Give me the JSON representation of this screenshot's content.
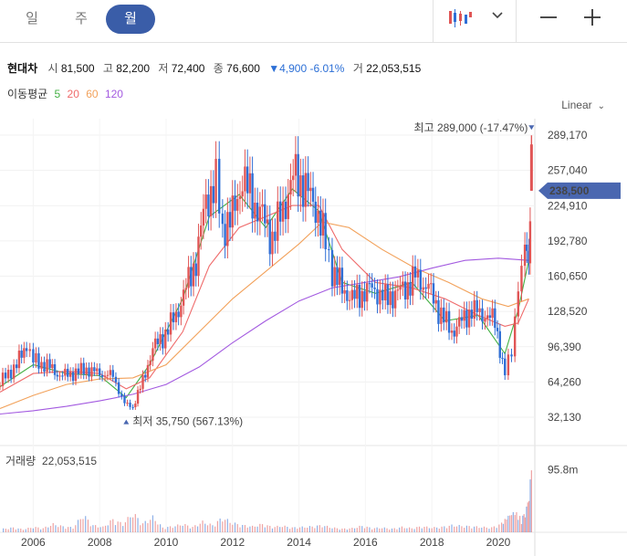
{
  "tabs": [
    {
      "label": "일",
      "active": false
    },
    {
      "label": "주",
      "active": false
    },
    {
      "label": "월",
      "active": true
    }
  ],
  "toolbar": {
    "chart_type_icon": "candlestick-icon",
    "dropdown_icon": "chevron-down-icon",
    "minimize_icon": "minus-icon",
    "add_icon": "plus-icon"
  },
  "quote": {
    "name": "현대차",
    "open_label": "시",
    "open": "81,500",
    "high_label": "고",
    "high": "82,200",
    "low_label": "저",
    "low": "72,400",
    "close_label": "종",
    "close": "76,600",
    "change": "▼4,900 -6.01%",
    "volume_label": "거",
    "volume": "22,053,515"
  },
  "moving_average": {
    "label": "이동평균",
    "periods": [
      "5",
      "20",
      "60",
      "120"
    ]
  },
  "scale_mode": "Linear",
  "colors": {
    "up": "#e05555",
    "down": "#2f6fd6",
    "ma5": "#44b044",
    "ma20": "#ef6a6a",
    "ma60": "#f2a15a",
    "ma120": "#a35ae0",
    "accent": "#4a67b0"
  },
  "chart_data": [
    {
      "type": "candlestick",
      "title": "현대차",
      "period": "monthly",
      "price_ticks": [
        289170,
        257040,
        224910,
        192780,
        160650,
        128520,
        96390,
        64260,
        32130
      ],
      "last_price_label": "238,500",
      "last_price": 238500,
      "high_annotation": "최고 289,000 (-17.47%)",
      "high_value": 289000,
      "high_date": 2021.0,
      "low_annotation": "최저 35,750 (567.13%)",
      "low_value": 35750,
      "low_date": 2008.8,
      "x_ticks": [
        "2006",
        "2008",
        "2010",
        "2012",
        "2014",
        "2016",
        "2018",
        "2020"
      ],
      "close_path": [
        [
          2005.0,
          64000
        ],
        [
          2005.5,
          80000
        ],
        [
          2005.8,
          98000
        ],
        [
          2006.0,
          84000
        ],
        [
          2006.5,
          78000
        ],
        [
          2006.8,
          70000
        ],
        [
          2007.2,
          72000
        ],
        [
          2007.6,
          76000
        ],
        [
          2008.0,
          72000
        ],
        [
          2008.4,
          70000
        ],
        [
          2008.75,
          44000
        ],
        [
          2009.0,
          42000
        ],
        [
          2009.3,
          65000
        ],
        [
          2009.6,
          95000
        ],
        [
          2009.9,
          105000
        ],
        [
          2010.3,
          125000
        ],
        [
          2010.6,
          150000
        ],
        [
          2010.9,
          175000
        ],
        [
          2011.2,
          230000
        ],
        [
          2011.5,
          245000
        ],
        [
          2011.7,
          205000
        ],
        [
          2012.0,
          215000
        ],
        [
          2012.3,
          250000
        ],
        [
          2012.6,
          230000
        ],
        [
          2012.9,
          215000
        ],
        [
          2013.2,
          195000
        ],
        [
          2013.6,
          230000
        ],
        [
          2013.9,
          255000
        ],
        [
          2014.2,
          240000
        ],
        [
          2014.5,
          225000
        ],
        [
          2014.8,
          190000
        ],
        [
          2015.0,
          165000
        ],
        [
          2015.3,
          150000
        ],
        [
          2015.6,
          140000
        ],
        [
          2015.9,
          145000
        ],
        [
          2016.2,
          150000
        ],
        [
          2016.6,
          140000
        ],
        [
          2016.9,
          145000
        ],
        [
          2017.2,
          150000
        ],
        [
          2017.5,
          160000
        ],
        [
          2017.9,
          150000
        ],
        [
          2018.2,
          130000
        ],
        [
          2018.6,
          110000
        ],
        [
          2018.9,
          120000
        ],
        [
          2019.2,
          130000
        ],
        [
          2019.6,
          125000
        ],
        [
          2019.9,
          120000
        ],
        [
          2020.2,
          70000
        ],
        [
          2020.4,
          95000
        ],
        [
          2020.6,
          150000
        ],
        [
          2020.8,
          180000
        ],
        [
          2020.92,
          190000
        ],
        [
          2021.0,
          238500
        ]
      ],
      "ma_paths": [
        {
          "name": "5",
          "points": [
            [
              2005.0,
              60000
            ],
            [
              2006.0,
              80000
            ],
            [
              2007.0,
              72000
            ],
            [
              2008.0,
              70000
            ],
            [
              2008.8,
              50000
            ],
            [
              2009.5,
              80000
            ],
            [
              2010.5,
              140000
            ],
            [
              2011.3,
              215000
            ],
            [
              2012.2,
              235000
            ],
            [
              2013.0,
              205000
            ],
            [
              2013.8,
              240000
            ],
            [
              2014.6,
              220000
            ],
            [
              2015.3,
              155000
            ],
            [
              2016.3,
              145000
            ],
            [
              2017.4,
              155000
            ],
            [
              2018.4,
              120000
            ],
            [
              2019.4,
              125000
            ],
            [
              2020.2,
              90000
            ],
            [
              2020.6,
              130000
            ],
            [
              2020.92,
              175000
            ]
          ]
        },
        {
          "name": "20",
          "points": [
            [
              2005.0,
              55000
            ],
            [
              2006.0,
              72000
            ],
            [
              2007.0,
              74000
            ],
            [
              2008.0,
              72000
            ],
            [
              2008.8,
              58000
            ],
            [
              2009.5,
              68000
            ],
            [
              2010.5,
              110000
            ],
            [
              2011.3,
              170000
            ],
            [
              2012.2,
              205000
            ],
            [
              2013.0,
              215000
            ],
            [
              2013.8,
              225000
            ],
            [
              2014.6,
              225000
            ],
            [
              2015.3,
              185000
            ],
            [
              2016.3,
              155000
            ],
            [
              2017.4,
              150000
            ],
            [
              2018.4,
              140000
            ],
            [
              2019.4,
              125000
            ],
            [
              2020.2,
              115000
            ],
            [
              2020.6,
              118000
            ],
            [
              2020.92,
              140000
            ]
          ]
        },
        {
          "name": "60",
          "points": [
            [
              2005.0,
              40000
            ],
            [
              2006.0,
              52000
            ],
            [
              2007.0,
              62000
            ],
            [
              2008.0,
              67000
            ],
            [
              2009.0,
              68000
            ],
            [
              2010.0,
              80000
            ],
            [
              2011.0,
              110000
            ],
            [
              2012.0,
              140000
            ],
            [
              2013.0,
              165000
            ],
            [
              2014.0,
              190000
            ],
            [
              2014.7,
              210000
            ],
            [
              2015.5,
              205000
            ],
            [
              2016.5,
              185000
            ],
            [
              2017.5,
              168000
            ],
            [
              2018.5,
              155000
            ],
            [
              2019.5,
              140000
            ],
            [
              2020.3,
              133000
            ],
            [
              2020.92,
              140000
            ]
          ]
        },
        {
          "name": "120",
          "points": [
            [
              2005.0,
              35000
            ],
            [
              2006.0,
              38000
            ],
            [
              2007.0,
              42000
            ],
            [
              2008.0,
              47000
            ],
            [
              2009.0,
              53000
            ],
            [
              2010.0,
              62000
            ],
            [
              2011.0,
              78000
            ],
            [
              2012.0,
              100000
            ],
            [
              2013.0,
              120000
            ],
            [
              2014.0,
              138000
            ],
            [
              2015.0,
              150000
            ],
            [
              2016.0,
              155000
            ],
            [
              2017.0,
              160000
            ],
            [
              2018.0,
              168000
            ],
            [
              2019.0,
              175000
            ],
            [
              2020.0,
              177000
            ],
            [
              2020.92,
              175000
            ]
          ]
        }
      ]
    },
    {
      "type": "bar",
      "title": "거래량",
      "title_value": "22,053,515",
      "ytick_label": "95.8m",
      "ytick_value": 95800000,
      "ylim": [
        0,
        105000000
      ],
      "bars": [
        [
          2005.1,
          6000000
        ],
        [
          2005.4,
          8000000
        ],
        [
          2005.7,
          5000000
        ],
        [
          2006.0,
          9000000
        ],
        [
          2006.3,
          7000000
        ],
        [
          2006.6,
          14000000
        ],
        [
          2006.9,
          10000000
        ],
        [
          2007.2,
          8000000
        ],
        [
          2007.5,
          30000000
        ],
        [
          2007.8,
          12000000
        ],
        [
          2008.1,
          9000000
        ],
        [
          2008.4,
          22000000
        ],
        [
          2008.7,
          14000000
        ],
        [
          2009.0,
          33000000
        ],
        [
          2009.3,
          15000000
        ],
        [
          2009.6,
          26000000
        ],
        [
          2009.9,
          8000000
        ],
        [
          2010.2,
          10000000
        ],
        [
          2010.5,
          14000000
        ],
        [
          2010.8,
          9000000
        ],
        [
          2011.1,
          18000000
        ],
        [
          2011.4,
          12000000
        ],
        [
          2011.7,
          25000000
        ],
        [
          2012.0,
          16000000
        ],
        [
          2012.3,
          12000000
        ],
        [
          2012.6,
          10000000
        ],
        [
          2012.9,
          14000000
        ],
        [
          2013.2,
          9000000
        ],
        [
          2013.5,
          11000000
        ],
        [
          2013.8,
          8000000
        ],
        [
          2014.1,
          9000000
        ],
        [
          2014.4,
          10000000
        ],
        [
          2014.7,
          12000000
        ],
        [
          2015.0,
          8000000
        ],
        [
          2015.3,
          6000000
        ],
        [
          2015.6,
          7000000
        ],
        [
          2015.9,
          11000000
        ],
        [
          2016.2,
          7000000
        ],
        [
          2016.5,
          8000000
        ],
        [
          2016.8,
          6000000
        ],
        [
          2017.1,
          9000000
        ],
        [
          2017.4,
          7000000
        ],
        [
          2017.7,
          10000000
        ],
        [
          2018.0,
          8000000
        ],
        [
          2018.3,
          9000000
        ],
        [
          2018.6,
          12000000
        ],
        [
          2018.9,
          11000000
        ],
        [
          2019.2,
          10000000
        ],
        [
          2019.5,
          9000000
        ],
        [
          2019.8,
          8000000
        ],
        [
          2020.1,
          15000000
        ],
        [
          2020.3,
          28000000
        ],
        [
          2020.5,
          35000000
        ],
        [
          2020.7,
          22000000
        ],
        [
          2020.85,
          40000000
        ],
        [
          2021.0,
          95000000
        ]
      ]
    }
  ]
}
